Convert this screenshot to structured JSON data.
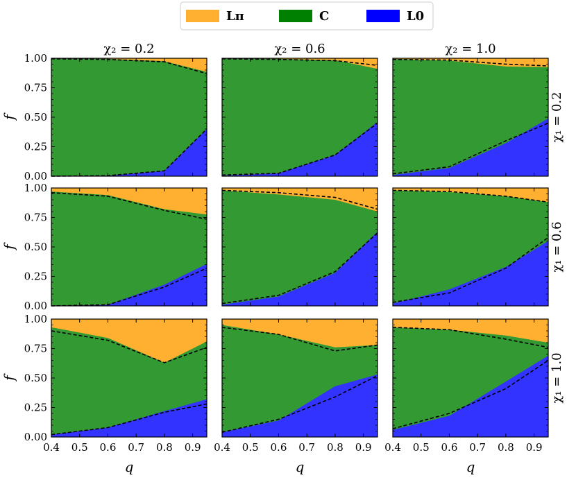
{
  "chart_data": {
    "type": "area",
    "legend": {
      "placement": "top-center",
      "entries": [
        {
          "label": "Lπ",
          "color": "#FFB030"
        },
        {
          "label": "C",
          "color": "#008000"
        },
        {
          "label": "L0",
          "color": "#0000FF"
        }
      ]
    },
    "colors": {
      "Lpi": "#FFB030",
      "C": "#339A33",
      "L0": "#3333FF",
      "dashed": "#000000"
    },
    "xlabel": "q",
    "ylabel": "f",
    "xlim": [
      0.4,
      0.95
    ],
    "ylim": [
      0,
      1
    ],
    "x": [
      0.4,
      0.6,
      0.8,
      0.95
    ],
    "xticks": [
      "0.4",
      "0.5",
      "0.6",
      "0.7",
      "0.8",
      "0.9"
    ],
    "yticks": [
      "0.00",
      "0.25",
      "0.50",
      "0.75",
      "1.00"
    ],
    "column_titles": [
      "χ₂ = 0.2",
      "χ₂ = 0.6",
      "χ₂ = 1.0"
    ],
    "row_titles": [
      "χ₁ = 0.2",
      "χ₁ = 0.6",
      "χ₁ = 1.0"
    ],
    "panels": [
      {
        "row": 0,
        "col": 0,
        "L0": [
          0.0,
          0.005,
          0.045,
          0.4
        ],
        "L0_plus_C": [
          1.0,
          0.995,
          0.975,
          0.885
        ],
        "dashed_lower": [
          0.0,
          0.005,
          0.045,
          0.4
        ],
        "dashed_upper": [
          0.995,
          0.99,
          0.97,
          0.87
        ]
      },
      {
        "row": 0,
        "col": 1,
        "L0": [
          0.005,
          0.025,
          0.18,
          0.46
        ],
        "L0_plus_C": [
          1.0,
          0.995,
          0.985,
          0.91
        ],
        "dashed_lower": [
          0.01,
          0.025,
          0.18,
          0.45
        ],
        "dashed_upper": [
          0.995,
          0.99,
          0.98,
          0.94
        ]
      },
      {
        "row": 0,
        "col": 2,
        "L0": [
          0.01,
          0.07,
          0.28,
          0.49
        ],
        "L0_plus_C": [
          0.995,
          0.98,
          0.93,
          0.925
        ],
        "dashed_lower": [
          0.02,
          0.08,
          0.3,
          0.45
        ],
        "dashed_upper": [
          0.99,
          0.985,
          0.95,
          0.935
        ]
      },
      {
        "row": 1,
        "col": 0,
        "L0": [
          0.0,
          0.01,
          0.18,
          0.355
        ],
        "L0_plus_C": [
          0.97,
          0.94,
          0.82,
          0.775
        ],
        "dashed_lower": [
          0.0,
          0.01,
          0.16,
          0.32
        ],
        "dashed_upper": [
          0.96,
          0.93,
          0.81,
          0.735
        ]
      },
      {
        "row": 1,
        "col": 1,
        "L0": [
          0.01,
          0.08,
          0.28,
          0.63
        ],
        "L0_plus_C": [
          0.98,
          0.945,
          0.9,
          0.8
        ],
        "dashed_lower": [
          0.02,
          0.09,
          0.29,
          0.62
        ],
        "dashed_upper": [
          0.98,
          0.96,
          0.92,
          0.82
        ]
      },
      {
        "row": 1,
        "col": 2,
        "L0": [
          0.02,
          0.14,
          0.33,
          0.55
        ],
        "L0_plus_C": [
          0.98,
          0.965,
          0.93,
          0.88
        ],
        "dashed_lower": [
          0.03,
          0.11,
          0.32,
          0.58
        ],
        "dashed_upper": [
          0.98,
          0.97,
          0.93,
          0.88
        ]
      },
      {
        "row": 2,
        "col": 0,
        "L0": [
          0.02,
          0.08,
          0.22,
          0.32
        ],
        "L0_plus_C": [
          0.93,
          0.84,
          0.63,
          0.81
        ],
        "dashed_lower": [
          0.02,
          0.08,
          0.21,
          0.28
        ],
        "dashed_upper": [
          0.9,
          0.82,
          0.63,
          0.76
        ]
      },
      {
        "row": 2,
        "col": 1,
        "L0": [
          0.04,
          0.14,
          0.43,
          0.53
        ],
        "L0_plus_C": [
          0.95,
          0.87,
          0.76,
          0.78
        ],
        "dashed_lower": [
          0.04,
          0.15,
          0.34,
          0.52
        ],
        "dashed_upper": [
          0.93,
          0.87,
          0.73,
          0.78
        ]
      },
      {
        "row": 2,
        "col": 2,
        "L0": [
          0.06,
          0.18,
          0.47,
          0.69
        ],
        "L0_plus_C": [
          0.93,
          0.91,
          0.86,
          0.8
        ],
        "dashed_lower": [
          0.07,
          0.2,
          0.41,
          0.65
        ],
        "dashed_upper": [
          0.93,
          0.91,
          0.83,
          0.76
        ]
      }
    ]
  }
}
